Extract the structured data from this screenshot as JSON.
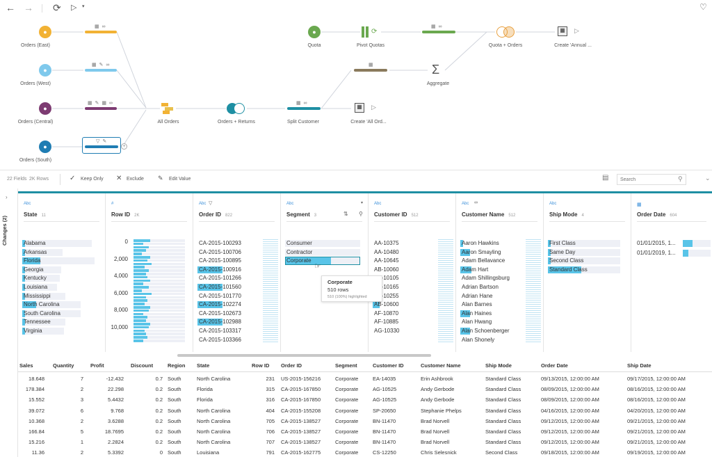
{
  "toolbar": {
    "back_icon": "arrow-left-icon",
    "forward_icon": "arrow-right-icon",
    "refresh_icon": "refresh-icon",
    "run_icon": "play-icon",
    "bell_icon": "bell-icon"
  },
  "flow": {
    "nodes": {
      "orders_east": "Orders (East)",
      "orders_west": "Orders (West)",
      "orders_central": "Orders (Central)",
      "orders_south": "Orders (South)",
      "all_orders": "All Orders",
      "orders_returns": "Orders + Returns",
      "split_customer": "Split Customer",
      "create_all_orders": "Create 'All Ord...",
      "quota": "Quota",
      "pivot_quotas": "Pivot Quotas",
      "quota_orders": "Quota + Orders",
      "create_annual": "Create 'Annual ...",
      "aggregate": "Aggregate"
    }
  },
  "profile_toolbar": {
    "fields": "22 Fields",
    "rows": "2K Rows",
    "keep_only": "Keep Only",
    "exclude": "Exclude",
    "edit_value": "Edit Value",
    "search_placeholder": "Search"
  },
  "changes_label": "Changes (2)",
  "profile": {
    "state": {
      "type": "Abc",
      "name": "State",
      "count": "11",
      "values": [
        "Alabama",
        "Arkansas",
        "Florida",
        "Georgia",
        "Kentucky",
        "Louisiana",
        "Mississippi",
        "North Carolina",
        "South Carolina",
        "Tennessee",
        "Virginia"
      ]
    },
    "row_id": {
      "type": "#",
      "name": "Row ID",
      "count": "2K",
      "ticks": [
        "0",
        "2,000",
        "4,000",
        "6,000",
        "8,000",
        "10,000"
      ]
    },
    "order_id": {
      "type": "Abc",
      "name": "Order ID",
      "count": "822",
      "values": [
        "CA-2015-100293",
        "CA-2015-100706",
        "CA-2015-100895",
        "CA-2015-100916",
        "CA-2015-101266",
        "CA-2015-101560",
        "CA-2015-101770",
        "CA-2015-102274",
        "CA-2015-102673",
        "CA-2015-102988",
        "CA-2015-103317",
        "CA-2015-103366"
      ]
    },
    "segment": {
      "type": "Abc",
      "name": "Segment",
      "count": "3",
      "values": [
        "Consumer",
        "Contractor",
        "Corporate"
      ],
      "tooltip": {
        "title": "Corporate",
        "rows": "510 rows",
        "highlight": "510 (100%) highlighted"
      }
    },
    "customer_id": {
      "type": "Abc",
      "name": "Customer ID",
      "count": "512",
      "values": [
        "AA-10375",
        "AA-10480",
        "AA-10645",
        "AB-10060",
        "AB-10105",
        "AB-10165",
        "AB-10255",
        "AB-10600",
        "AF-10870",
        "AF-10885",
        "AG-10330"
      ]
    },
    "customer_name": {
      "type": "Abc",
      "name": "Customer Name",
      "count": "512",
      "values": [
        "Aaron Hawkins",
        "Aaron Smayling",
        "Adam Bellavance",
        "Adam Hart",
        "Adam Shillingsburg",
        "Adrian Bartson",
        "Adrian Hane",
        "Alan Barnes",
        "Alan Haines",
        "Alan Hwang",
        "Alan Schoenberger",
        "Alan Shonely"
      ]
    },
    "ship_mode": {
      "type": "Abc",
      "name": "Ship Mode",
      "count": "4",
      "values": [
        "First Class",
        "Same Day",
        "Second Class",
        "Standard Class"
      ]
    },
    "order_date": {
      "type": "date",
      "name": "Order Date",
      "count": "604",
      "values": [
        "01/01/2015, 1...",
        "01/01/2019, 1..."
      ]
    }
  },
  "grid": {
    "headers": [
      "Sales",
      "Quantity",
      "Profit",
      "Discount",
      "Region",
      "State",
      "Row ID",
      "Order ID",
      "Segment",
      "Customer ID",
      "Customer Name",
      "Ship Mode",
      "Order Date",
      "Ship Date"
    ],
    "rows": [
      [
        "18.648",
        "7",
        "-12.432",
        "0.7",
        "South",
        "North Carolina",
        "231",
        "US-2015-156216",
        "Corporate",
        "EA-14035",
        "Erin Ashbrook",
        "Standard Class",
        "09/13/2015, 12:00:00 AM",
        "09/17/2015, 12:00:00 AM"
      ],
      [
        "178.384",
        "2",
        "22.298",
        "0.2",
        "South",
        "Florida",
        "315",
        "CA-2015-167850",
        "Corporate",
        "AG-10525",
        "Andy Gerbode",
        "Standard Class",
        "08/09/2015, 12:00:00 AM",
        "08/16/2015, 12:00:00 AM"
      ],
      [
        "15.552",
        "3",
        "5.4432",
        "0.2",
        "South",
        "Florida",
        "316",
        "CA-2015-167850",
        "Corporate",
        "AG-10525",
        "Andy Gerbode",
        "Standard Class",
        "08/09/2015, 12:00:00 AM",
        "08/16/2015, 12:00:00 AM"
      ],
      [
        "39.072",
        "6",
        "9.768",
        "0.2",
        "South",
        "North Carolina",
        "404",
        "CA-2015-155208",
        "Corporate",
        "SP-20650",
        "Stephanie Phelps",
        "Standard Class",
        "04/16/2015, 12:00:00 AM",
        "04/20/2015, 12:00:00 AM"
      ],
      [
        "10.368",
        "2",
        "3.6288",
        "0.2",
        "South",
        "North Carolina",
        "705",
        "CA-2015-138527",
        "Corporate",
        "BN-11470",
        "Brad Norvell",
        "Standard Class",
        "09/12/2015, 12:00:00 AM",
        "09/21/2015, 12:00:00 AM"
      ],
      [
        "166.84",
        "5",
        "18.7695",
        "0.2",
        "South",
        "North Carolina",
        "706",
        "CA-2015-138527",
        "Corporate",
        "BN-11470",
        "Brad Norvell",
        "Standard Class",
        "09/12/2015, 12:00:00 AM",
        "09/21/2015, 12:00:00 AM"
      ],
      [
        "15.216",
        "1",
        "2.2824",
        "0.2",
        "South",
        "North Carolina",
        "707",
        "CA-2015-138527",
        "Corporate",
        "BN-11470",
        "Brad Norvell",
        "Standard Class",
        "09/12/2015, 12:00:00 AM",
        "09/21/2015, 12:00:00 AM"
      ],
      [
        "11.36",
        "2",
        "5.3392",
        "0",
        "South",
        "Louisiana",
        "791",
        "CA-2015-162775",
        "Corporate",
        "CS-12250",
        "Chris Selesnick",
        "Second Class",
        "09/18/2015, 12:00:00 AM",
        "09/19/2015, 12:00:00 AM"
      ]
    ]
  },
  "colors": {
    "east": "#f2b234",
    "west": "#7fc9ec",
    "central": "#7d3b72",
    "south": "#1f7db3",
    "teal": "#1e8fa3",
    "green": "#6aa84f",
    "brown": "#8a7a5c",
    "highlight": "#59c4e8"
  }
}
